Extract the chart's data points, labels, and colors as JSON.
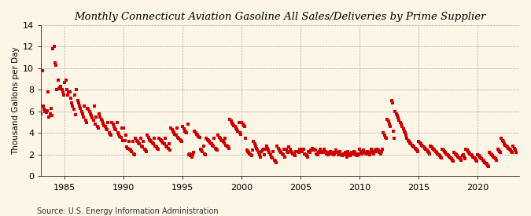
{
  "title": "Monthly Connecticut Aviation Gasoline All Sales/Deliveries by Prime Supplier",
  "ylabel": "Thousand Gallons per Day",
  "source": "Source: U.S. Energy Information Administration",
  "background_color": "#fdf5e6",
  "marker_color": "#cc0000",
  "xlim": [
    1983.0,
    2023.5
  ],
  "ylim": [
    0,
    14
  ],
  "yticks": [
    0,
    2,
    4,
    6,
    8,
    10,
    12,
    14
  ],
  "xticks": [
    1985,
    1990,
    1995,
    2000,
    2005,
    2010,
    2015,
    2020
  ],
  "data": [
    [
      1983.0,
      5.8
    ],
    [
      1983.08,
      9.8
    ],
    [
      1983.17,
      6.5
    ],
    [
      1983.25,
      6.2
    ],
    [
      1983.33,
      6.0
    ],
    [
      1983.42,
      5.9
    ],
    [
      1983.5,
      6.1
    ],
    [
      1983.58,
      7.8
    ],
    [
      1983.67,
      5.5
    ],
    [
      1983.75,
      5.8
    ],
    [
      1983.83,
      6.3
    ],
    [
      1983.92,
      5.6
    ],
    [
      1984.0,
      11.8
    ],
    [
      1984.08,
      12.0
    ],
    [
      1984.17,
      10.5
    ],
    [
      1984.25,
      10.3
    ],
    [
      1984.33,
      8.0
    ],
    [
      1984.42,
      8.9
    ],
    [
      1984.5,
      8.2
    ],
    [
      1984.58,
      8.1
    ],
    [
      1984.67,
      8.3
    ],
    [
      1984.75,
      8.0
    ],
    [
      1984.83,
      7.8
    ],
    [
      1984.92,
      7.5
    ],
    [
      1985.0,
      8.7
    ],
    [
      1985.08,
      8.9
    ],
    [
      1985.17,
      8.0
    ],
    [
      1985.25,
      7.5
    ],
    [
      1985.33,
      7.8
    ],
    [
      1985.42,
      7.8
    ],
    [
      1985.5,
      7.2
    ],
    [
      1985.58,
      6.8
    ],
    [
      1985.67,
      6.5
    ],
    [
      1985.75,
      6.2
    ],
    [
      1985.83,
      7.5
    ],
    [
      1985.92,
      5.7
    ],
    [
      1986.0,
      8.0
    ],
    [
      1986.08,
      7.0
    ],
    [
      1986.17,
      6.8
    ],
    [
      1986.25,
      6.5
    ],
    [
      1986.33,
      6.3
    ],
    [
      1986.42,
      6.0
    ],
    [
      1986.5,
      5.8
    ],
    [
      1986.58,
      5.5
    ],
    [
      1986.67,
      6.5
    ],
    [
      1986.75,
      5.2
    ],
    [
      1986.83,
      5.0
    ],
    [
      1986.92,
      6.3
    ],
    [
      1987.0,
      6.2
    ],
    [
      1987.08,
      6.0
    ],
    [
      1987.17,
      5.8
    ],
    [
      1987.25,
      5.6
    ],
    [
      1987.33,
      5.4
    ],
    [
      1987.42,
      5.2
    ],
    [
      1987.5,
      6.5
    ],
    [
      1987.58,
      4.8
    ],
    [
      1987.67,
      5.5
    ],
    [
      1987.75,
      4.6
    ],
    [
      1987.83,
      4.5
    ],
    [
      1987.92,
      5.8
    ],
    [
      1988.0,
      5.5
    ],
    [
      1988.08,
      5.3
    ],
    [
      1988.17,
      5.1
    ],
    [
      1988.25,
      4.9
    ],
    [
      1988.33,
      4.7
    ],
    [
      1988.42,
      4.6
    ],
    [
      1988.5,
      4.4
    ],
    [
      1988.58,
      4.3
    ],
    [
      1988.67,
      5.0
    ],
    [
      1988.75,
      4.0
    ],
    [
      1988.83,
      3.9
    ],
    [
      1988.92,
      3.8
    ],
    [
      1989.0,
      5.0
    ],
    [
      1989.08,
      4.8
    ],
    [
      1989.17,
      4.6
    ],
    [
      1989.25,
      4.4
    ],
    [
      1989.33,
      4.3
    ],
    [
      1989.42,
      5.0
    ],
    [
      1989.5,
      4.0
    ],
    [
      1989.58,
      3.9
    ],
    [
      1989.67,
      3.7
    ],
    [
      1989.75,
      3.6
    ],
    [
      1989.83,
      4.5
    ],
    [
      1989.92,
      3.3
    ],
    [
      1990.0,
      4.5
    ],
    [
      1990.08,
      3.3
    ],
    [
      1990.17,
      3.8
    ],
    [
      1990.25,
      2.7
    ],
    [
      1990.33,
      2.6
    ],
    [
      1990.42,
      3.2
    ],
    [
      1990.5,
      2.5
    ],
    [
      1990.58,
      2.4
    ],
    [
      1990.67,
      2.3
    ],
    [
      1990.75,
      3.2
    ],
    [
      1990.83,
      2.1
    ],
    [
      1990.92,
      2.0
    ],
    [
      1991.0,
      3.5
    ],
    [
      1991.08,
      3.3
    ],
    [
      1991.17,
      3.2
    ],
    [
      1991.25,
      3.1
    ],
    [
      1991.33,
      3.0
    ],
    [
      1991.42,
      3.5
    ],
    [
      1991.5,
      2.8
    ],
    [
      1991.58,
      2.7
    ],
    [
      1991.67,
      3.2
    ],
    [
      1991.75,
      2.5
    ],
    [
      1991.83,
      2.4
    ],
    [
      1991.92,
      2.3
    ],
    [
      1992.0,
      3.8
    ],
    [
      1992.08,
      3.6
    ],
    [
      1992.17,
      3.4
    ],
    [
      1992.25,
      3.3
    ],
    [
      1992.33,
      3.2
    ],
    [
      1992.42,
      3.1
    ],
    [
      1992.5,
      3.0
    ],
    [
      1992.58,
      3.5
    ],
    [
      1992.67,
      2.8
    ],
    [
      1992.75,
      2.7
    ],
    [
      1992.83,
      2.6
    ],
    [
      1992.92,
      2.5
    ],
    [
      1993.0,
      3.5
    ],
    [
      1993.08,
      3.4
    ],
    [
      1993.17,
      3.3
    ],
    [
      1993.25,
      3.2
    ],
    [
      1993.33,
      3.1
    ],
    [
      1993.42,
      3.0
    ],
    [
      1993.5,
      3.5
    ],
    [
      1993.58,
      2.8
    ],
    [
      1993.67,
      2.7
    ],
    [
      1993.75,
      2.6
    ],
    [
      1993.83,
      3.0
    ],
    [
      1993.92,
      2.4
    ],
    [
      1994.0,
      4.5
    ],
    [
      1994.08,
      4.3
    ],
    [
      1994.17,
      4.2
    ],
    [
      1994.25,
      4.0
    ],
    [
      1994.33,
      3.9
    ],
    [
      1994.42,
      3.8
    ],
    [
      1994.5,
      4.5
    ],
    [
      1994.58,
      3.6
    ],
    [
      1994.67,
      3.5
    ],
    [
      1994.75,
      3.4
    ],
    [
      1994.83,
      3.3
    ],
    [
      1994.92,
      3.2
    ],
    [
      1995.0,
      4.6
    ],
    [
      1995.08,
      4.4
    ],
    [
      1995.17,
      4.2
    ],
    [
      1995.25,
      4.1
    ],
    [
      1995.33,
      4.0
    ],
    [
      1995.42,
      4.8
    ],
    [
      1995.5,
      2.0
    ],
    [
      1995.58,
      2.1
    ],
    [
      1995.67,
      1.9
    ],
    [
      1995.75,
      1.8
    ],
    [
      1995.83,
      2.0
    ],
    [
      1995.92,
      2.2
    ],
    [
      1996.0,
      4.2
    ],
    [
      1996.08,
      4.0
    ],
    [
      1996.17,
      3.9
    ],
    [
      1996.25,
      3.8
    ],
    [
      1996.33,
      3.7
    ],
    [
      1996.42,
      3.6
    ],
    [
      1996.5,
      2.5
    ],
    [
      1996.58,
      2.4
    ],
    [
      1996.67,
      2.3
    ],
    [
      1996.75,
      2.8
    ],
    [
      1996.83,
      2.1
    ],
    [
      1996.92,
      2.0
    ],
    [
      1997.0,
      3.5
    ],
    [
      1997.08,
      3.4
    ],
    [
      1997.17,
      3.3
    ],
    [
      1997.25,
      3.2
    ],
    [
      1997.33,
      3.1
    ],
    [
      1997.42,
      3.0
    ],
    [
      1997.5,
      2.9
    ],
    [
      1997.58,
      2.8
    ],
    [
      1997.67,
      3.5
    ],
    [
      1997.75,
      2.6
    ],
    [
      1997.83,
      2.5
    ],
    [
      1997.92,
      2.4
    ],
    [
      1998.0,
      3.8
    ],
    [
      1998.08,
      3.6
    ],
    [
      1998.17,
      3.5
    ],
    [
      1998.25,
      3.4
    ],
    [
      1998.33,
      3.3
    ],
    [
      1998.42,
      3.2
    ],
    [
      1998.5,
      3.1
    ],
    [
      1998.58,
      3.5
    ],
    [
      1998.67,
      2.9
    ],
    [
      1998.75,
      2.8
    ],
    [
      1998.83,
      2.7
    ],
    [
      1998.92,
      2.6
    ],
    [
      1999.0,
      5.3
    ],
    [
      1999.08,
      5.1
    ],
    [
      1999.17,
      4.9
    ],
    [
      1999.25,
      4.8
    ],
    [
      1999.33,
      4.7
    ],
    [
      1999.42,
      4.6
    ],
    [
      1999.5,
      4.5
    ],
    [
      1999.58,
      4.3
    ],
    [
      1999.67,
      4.2
    ],
    [
      1999.75,
      5.0
    ],
    [
      1999.83,
      4.0
    ],
    [
      1999.92,
      3.9
    ],
    [
      2000.0,
      5.0
    ],
    [
      2000.08,
      4.8
    ],
    [
      2000.17,
      4.7
    ],
    [
      2000.25,
      4.6
    ],
    [
      2000.33,
      3.5
    ],
    [
      2000.42,
      2.4
    ],
    [
      2000.5,
      2.3
    ],
    [
      2000.58,
      2.2
    ],
    [
      2000.67,
      2.1
    ],
    [
      2000.75,
      2.0
    ],
    [
      2000.83,
      1.9
    ],
    [
      2000.92,
      2.4
    ],
    [
      2001.0,
      3.2
    ],
    [
      2001.08,
      3.0
    ],
    [
      2001.17,
      2.8
    ],
    [
      2001.25,
      2.6
    ],
    [
      2001.33,
      2.4
    ],
    [
      2001.42,
      2.2
    ],
    [
      2001.5,
      2.0
    ],
    [
      2001.58,
      1.8
    ],
    [
      2001.67,
      2.3
    ],
    [
      2001.75,
      2.4
    ],
    [
      2001.83,
      2.5
    ],
    [
      2001.92,
      2.0
    ],
    [
      2002.0,
      2.5
    ],
    [
      2002.08,
      2.8
    ],
    [
      2002.17,
      2.6
    ],
    [
      2002.25,
      2.4
    ],
    [
      2002.33,
      2.2
    ],
    [
      2002.42,
      2.0
    ],
    [
      2002.5,
      1.8
    ],
    [
      2002.58,
      1.7
    ],
    [
      2002.67,
      2.3
    ],
    [
      2002.75,
      1.5
    ],
    [
      2002.83,
      1.4
    ],
    [
      2002.92,
      1.3
    ],
    [
      2003.0,
      2.8
    ],
    [
      2003.08,
      2.6
    ],
    [
      2003.17,
      2.4
    ],
    [
      2003.25,
      2.3
    ],
    [
      2003.33,
      2.2
    ],
    [
      2003.42,
      2.1
    ],
    [
      2003.5,
      2.0
    ],
    [
      2003.58,
      2.5
    ],
    [
      2003.67,
      1.8
    ],
    [
      2003.75,
      2.5
    ],
    [
      2003.83,
      2.3
    ],
    [
      2003.92,
      2.2
    ],
    [
      2004.0,
      2.7
    ],
    [
      2004.08,
      2.5
    ],
    [
      2004.17,
      2.3
    ],
    [
      2004.25,
      2.2
    ],
    [
      2004.33,
      2.1
    ],
    [
      2004.42,
      2.0
    ],
    [
      2004.5,
      1.9
    ],
    [
      2004.58,
      2.3
    ],
    [
      2004.67,
      2.3
    ],
    [
      2004.75,
      2.3
    ],
    [
      2004.83,
      2.2
    ],
    [
      2004.92,
      2.5
    ],
    [
      2005.0,
      2.3
    ],
    [
      2005.08,
      2.3
    ],
    [
      2005.17,
      2.5
    ],
    [
      2005.25,
      2.5
    ],
    [
      2005.33,
      2.1
    ],
    [
      2005.42,
      2.0
    ],
    [
      2005.5,
      1.9
    ],
    [
      2005.58,
      1.8
    ],
    [
      2005.67,
      2.3
    ],
    [
      2005.75,
      2.2
    ],
    [
      2005.83,
      2.4
    ],
    [
      2005.92,
      2.4
    ],
    [
      2006.0,
      2.6
    ],
    [
      2006.08,
      2.5
    ],
    [
      2006.17,
      2.4
    ],
    [
      2006.25,
      2.4
    ],
    [
      2006.33,
      2.1
    ],
    [
      2006.42,
      2.0
    ],
    [
      2006.5,
      2.2
    ],
    [
      2006.58,
      2.3
    ],
    [
      2006.67,
      2.5
    ],
    [
      2006.75,
      2.2
    ],
    [
      2006.83,
      2.3
    ],
    [
      2006.92,
      2.2
    ],
    [
      2007.0,
      2.5
    ],
    [
      2007.08,
      2.3
    ],
    [
      2007.17,
      2.1
    ],
    [
      2007.25,
      2.2
    ],
    [
      2007.33,
      2.0
    ],
    [
      2007.42,
      2.1
    ],
    [
      2007.5,
      2.3
    ],
    [
      2007.58,
      2.1
    ],
    [
      2007.67,
      2.2
    ],
    [
      2007.75,
      2.0
    ],
    [
      2007.83,
      2.1
    ],
    [
      2007.92,
      2.2
    ],
    [
      2008.0,
      2.4
    ],
    [
      2008.08,
      2.2
    ],
    [
      2008.17,
      2.0
    ],
    [
      2008.25,
      2.1
    ],
    [
      2008.33,
      2.3
    ],
    [
      2008.42,
      2.0
    ],
    [
      2008.5,
      1.9
    ],
    [
      2008.58,
      2.0
    ],
    [
      2008.67,
      2.1
    ],
    [
      2008.75,
      2.2
    ],
    [
      2008.83,
      2.0
    ],
    [
      2008.92,
      1.8
    ],
    [
      2009.0,
      2.3
    ],
    [
      2009.08,
      2.1
    ],
    [
      2009.17,
      1.9
    ],
    [
      2009.25,
      2.0
    ],
    [
      2009.33,
      2.2
    ],
    [
      2009.42,
      2.1
    ],
    [
      2009.5,
      2.3
    ],
    [
      2009.58,
      2.2
    ],
    [
      2009.67,
      2.0
    ],
    [
      2009.75,
      1.9
    ],
    [
      2009.83,
      2.1
    ],
    [
      2009.92,
      2.0
    ],
    [
      2010.0,
      2.5
    ],
    [
      2010.08,
      2.3
    ],
    [
      2010.17,
      2.1
    ],
    [
      2010.25,
      2.2
    ],
    [
      2010.33,
      2.4
    ],
    [
      2010.42,
      2.2
    ],
    [
      2010.5,
      2.1
    ],
    [
      2010.58,
      2.2
    ],
    [
      2010.67,
      2.3
    ],
    [
      2010.75,
      2.1
    ],
    [
      2010.83,
      2.0
    ],
    [
      2010.92,
      2.2
    ],
    [
      2011.0,
      2.5
    ],
    [
      2011.08,
      2.3
    ],
    [
      2011.17,
      2.1
    ],
    [
      2011.25,
      2.3
    ],
    [
      2011.33,
      2.4
    ],
    [
      2011.42,
      2.5
    ],
    [
      2011.5,
      2.3
    ],
    [
      2011.58,
      2.4
    ],
    [
      2011.67,
      2.2
    ],
    [
      2011.75,
      2.1
    ],
    [
      2011.83,
      2.3
    ],
    [
      2011.92,
      2.5
    ],
    [
      2012.0,
      4.0
    ],
    [
      2012.08,
      3.8
    ],
    [
      2012.17,
      3.6
    ],
    [
      2012.25,
      3.5
    ],
    [
      2012.33,
      5.3
    ],
    [
      2012.42,
      5.1
    ],
    [
      2012.5,
      4.8
    ],
    [
      2012.58,
      4.6
    ],
    [
      2012.67,
      7.0
    ],
    [
      2012.75,
      6.8
    ],
    [
      2012.83,
      4.2
    ],
    [
      2012.92,
      3.5
    ],
    [
      2013.0,
      6.0
    ],
    [
      2013.08,
      5.8
    ],
    [
      2013.17,
      5.6
    ],
    [
      2013.25,
      5.4
    ],
    [
      2013.33,
      5.2
    ],
    [
      2013.42,
      5.0
    ],
    [
      2013.5,
      4.8
    ],
    [
      2013.58,
      4.6
    ],
    [
      2013.67,
      4.4
    ],
    [
      2013.75,
      4.2
    ],
    [
      2013.83,
      4.0
    ],
    [
      2013.92,
      3.8
    ],
    [
      2014.0,
      3.5
    ],
    [
      2014.08,
      3.3
    ],
    [
      2014.17,
      3.2
    ],
    [
      2014.25,
      3.1
    ],
    [
      2014.33,
      3.0
    ],
    [
      2014.42,
      2.9
    ],
    [
      2014.5,
      2.8
    ],
    [
      2014.58,
      2.7
    ],
    [
      2014.67,
      2.6
    ],
    [
      2014.75,
      2.5
    ],
    [
      2014.83,
      2.4
    ],
    [
      2014.92,
      2.3
    ],
    [
      2015.0,
      3.2
    ],
    [
      2015.08,
      3.1
    ],
    [
      2015.17,
      3.0
    ],
    [
      2015.25,
      2.9
    ],
    [
      2015.33,
      2.8
    ],
    [
      2015.42,
      2.7
    ],
    [
      2015.5,
      2.6
    ],
    [
      2015.58,
      2.5
    ],
    [
      2015.67,
      2.4
    ],
    [
      2015.75,
      2.3
    ],
    [
      2015.83,
      2.2
    ],
    [
      2015.92,
      2.1
    ],
    [
      2016.0,
      2.8
    ],
    [
      2016.08,
      2.7
    ],
    [
      2016.17,
      2.6
    ],
    [
      2016.25,
      2.5
    ],
    [
      2016.33,
      2.4
    ],
    [
      2016.42,
      2.3
    ],
    [
      2016.5,
      2.2
    ],
    [
      2016.58,
      2.1
    ],
    [
      2016.67,
      2.0
    ],
    [
      2016.75,
      1.9
    ],
    [
      2016.83,
      1.8
    ],
    [
      2016.92,
      1.7
    ],
    [
      2017.0,
      2.5
    ],
    [
      2017.08,
      2.4
    ],
    [
      2017.17,
      2.3
    ],
    [
      2017.25,
      2.2
    ],
    [
      2017.33,
      2.1
    ],
    [
      2017.42,
      2.0
    ],
    [
      2017.5,
      1.9
    ],
    [
      2017.58,
      1.8
    ],
    [
      2017.67,
      1.7
    ],
    [
      2017.75,
      1.6
    ],
    [
      2017.83,
      1.5
    ],
    [
      2017.92,
      1.4
    ],
    [
      2018.0,
      2.2
    ],
    [
      2018.08,
      2.1
    ],
    [
      2018.17,
      2.0
    ],
    [
      2018.25,
      1.9
    ],
    [
      2018.33,
      1.8
    ],
    [
      2018.42,
      1.7
    ],
    [
      2018.5,
      1.6
    ],
    [
      2018.58,
      1.5
    ],
    [
      2018.67,
      1.9
    ],
    [
      2018.75,
      2.0
    ],
    [
      2018.83,
      1.8
    ],
    [
      2018.92,
      1.6
    ],
    [
      2019.0,
      2.5
    ],
    [
      2019.08,
      2.4
    ],
    [
      2019.17,
      2.3
    ],
    [
      2019.25,
      2.2
    ],
    [
      2019.33,
      2.1
    ],
    [
      2019.42,
      2.0
    ],
    [
      2019.5,
      1.9
    ],
    [
      2019.58,
      1.8
    ],
    [
      2019.67,
      1.7
    ],
    [
      2019.75,
      1.6
    ],
    [
      2019.83,
      1.5
    ],
    [
      2019.92,
      1.4
    ],
    [
      2020.0,
      2.0
    ],
    [
      2020.08,
      1.9
    ],
    [
      2020.17,
      1.8
    ],
    [
      2020.25,
      1.7
    ],
    [
      2020.33,
      1.6
    ],
    [
      2020.42,
      1.5
    ],
    [
      2020.5,
      1.4
    ],
    [
      2020.58,
      1.3
    ],
    [
      2020.67,
      1.2
    ],
    [
      2020.75,
      1.1
    ],
    [
      2020.83,
      1.0
    ],
    [
      2020.92,
      0.9
    ],
    [
      2021.0,
      2.2
    ],
    [
      2021.08,
      2.1
    ],
    [
      2021.17,
      2.0
    ],
    [
      2021.25,
      1.9
    ],
    [
      2021.33,
      1.8
    ],
    [
      2021.42,
      1.7
    ],
    [
      2021.5,
      1.6
    ],
    [
      2021.58,
      1.5
    ],
    [
      2021.67,
      2.5
    ],
    [
      2021.75,
      2.4
    ],
    [
      2021.83,
      2.3
    ],
    [
      2021.92,
      2.2
    ],
    [
      2022.0,
      3.5
    ],
    [
      2022.08,
      3.3
    ],
    [
      2022.17,
      3.2
    ],
    [
      2022.25,
      3.0
    ],
    [
      2022.33,
      2.9
    ],
    [
      2022.42,
      2.8
    ],
    [
      2022.5,
      2.7
    ],
    [
      2022.58,
      2.6
    ],
    [
      2022.67,
      2.5
    ],
    [
      2022.75,
      2.4
    ],
    [
      2022.83,
      2.3
    ],
    [
      2022.92,
      2.2
    ],
    [
      2023.0,
      2.8
    ],
    [
      2023.08,
      2.6
    ],
    [
      2023.17,
      2.4
    ],
    [
      2023.25,
      2.2
    ]
  ]
}
